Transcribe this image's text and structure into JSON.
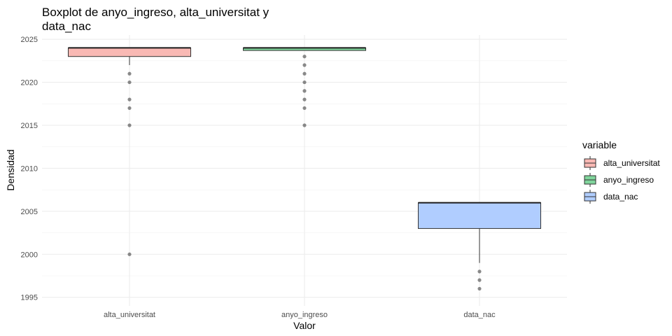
{
  "chart_data": {
    "type": "boxplot",
    "title_lines": [
      "Boxplot de anyo_ingreso, alta_universitat y",
      "data_nac"
    ],
    "xlabel": "Valor",
    "ylabel": "Densidad",
    "ylim": [
      1994,
      2025.5
    ],
    "y_ticks": [
      1995,
      2000,
      2005,
      2010,
      2015,
      2020,
      2025
    ],
    "categories": [
      "alta_universitat",
      "anyo_ingreso",
      "data_nac"
    ],
    "grid": true,
    "legend": {
      "title": "variable",
      "position": "right",
      "entries": [
        "alta_universitat",
        "anyo_ingreso",
        "data_nac"
      ]
    },
    "series": [
      {
        "name": "alta_universitat",
        "color": "#f8766d",
        "fill": "#f9b9b4",
        "q1": 2023,
        "median": 2024,
        "q3": 2024,
        "whisker_low": 2022,
        "whisker_high": 2024,
        "outliers": [
          2021,
          2020,
          2018,
          2017,
          2015,
          2000
        ]
      },
      {
        "name": "anyo_ingreso",
        "color": "#00ba38",
        "fill": "#80d59c",
        "q1": 2023.7,
        "median": 2024,
        "q3": 2024,
        "whisker_low": 2023.7,
        "whisker_high": 2024,
        "outliers": [
          2023,
          2022,
          2021,
          2020,
          2019,
          2018,
          2017,
          2015
        ]
      },
      {
        "name": "data_nac",
        "color": "#619cff",
        "fill": "#b0cdff",
        "q1": 2003,
        "median": 2006,
        "q3": 2006,
        "whisker_low": 1999,
        "whisker_high": 2006,
        "outliers": [
          1998,
          1997,
          1996
        ]
      }
    ]
  }
}
